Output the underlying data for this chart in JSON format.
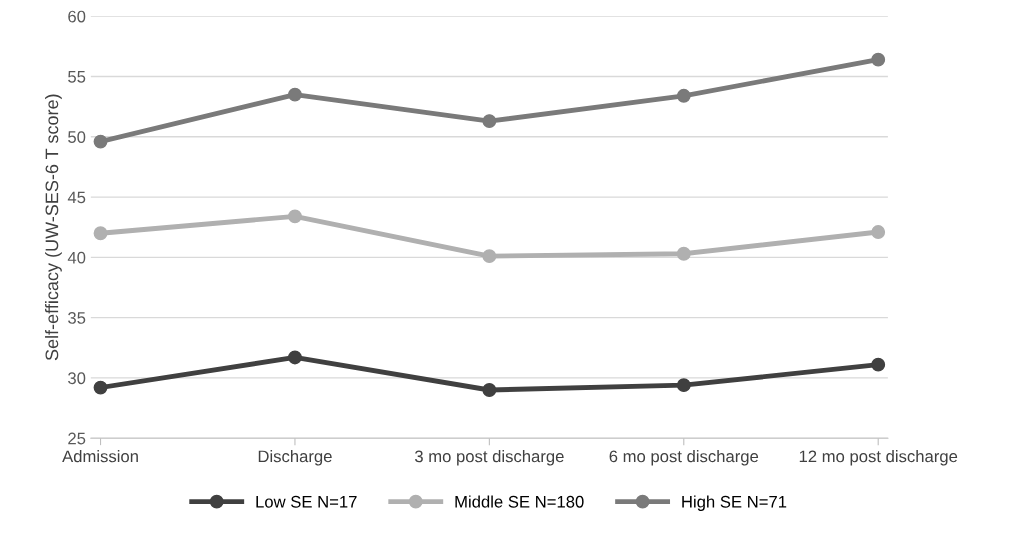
{
  "chart_data": {
    "type": "line",
    "ylabel": "Self-efficacy (UW-SES-6 T score)",
    "categories": [
      "Admission",
      "Discharge",
      "3 mo post discharge",
      "6 mo post discharge",
      "12 mo post discharge"
    ],
    "series": [
      {
        "name": "Low SE N=17",
        "color": "#404040",
        "values": [
          29.2,
          31.7,
          29.0,
          29.4,
          31.1
        ]
      },
      {
        "name": "Middle SE N=180",
        "color": "#b0b0b0",
        "values": [
          42.0,
          43.4,
          40.1,
          40.3,
          42.1
        ]
      },
      {
        "name": "High SE N=71",
        "color": "#7a7a7a",
        "values": [
          49.6,
          53.5,
          51.3,
          53.4,
          56.4
        ]
      }
    ],
    "ylim": [
      25,
      60
    ],
    "yticks": [
      25,
      30,
      35,
      40,
      45,
      50,
      55,
      60
    ],
    "grid": "y",
    "legend": "bottom",
    "marker": "circle",
    "line_style": "solid"
  }
}
